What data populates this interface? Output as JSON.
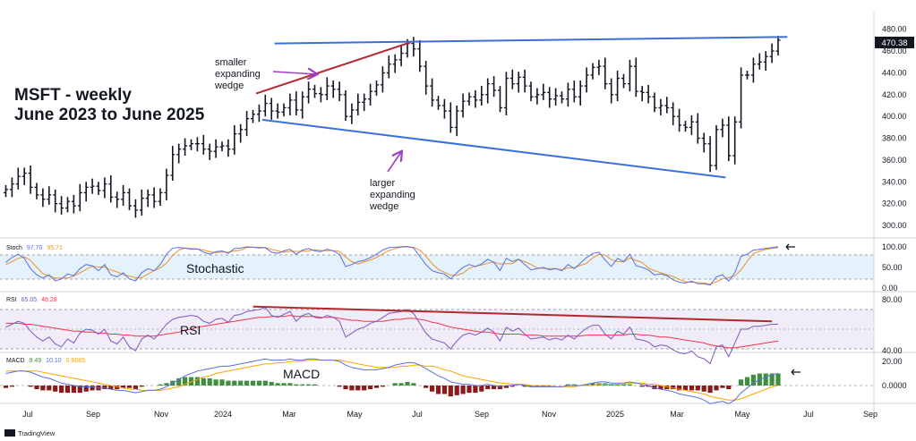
{
  "chart_data": {
    "type": "ohlc",
    "title": [
      "MSFT - weekly",
      "June 2023 to June 2025"
    ],
    "x_tick_labels": [
      "Jul",
      "Sep",
      "Nov",
      "2024",
      "Mar",
      "May",
      "Jul",
      "Sep",
      "Nov",
      "2025",
      "Mar",
      "May",
      "Jul",
      "Sep"
    ],
    "y_ticks": [
      "300.00",
      "320.00",
      "340.00",
      "360.00",
      "380.00",
      "400.00",
      "420.00",
      "440.00",
      "460.00",
      "480.00"
    ],
    "ylim": [
      300,
      488
    ],
    "last_price": "470.38",
    "weekly_close": [
      333,
      338,
      345,
      348,
      335,
      328,
      324,
      328,
      320,
      316,
      322,
      318,
      330,
      335,
      336,
      332,
      338,
      326,
      324,
      330,
      318,
      314,
      325,
      328,
      322,
      330,
      346,
      365,
      370,
      373,
      375,
      375,
      370,
      368,
      372,
      373,
      370,
      384,
      388,
      398,
      402,
      405,
      412,
      405,
      404,
      408,
      415,
      406,
      418,
      425,
      421,
      420,
      428,
      425,
      420,
      400,
      406,
      413,
      416,
      423,
      429,
      440,
      448,
      452,
      458,
      467,
      462,
      446,
      428,
      415,
      410,
      405,
      390,
      405,
      414,
      418,
      415,
      420,
      430,
      424,
      408,
      435,
      430,
      436,
      428,
      418,
      420,
      422,
      416,
      419,
      416,
      425,
      418,
      428,
      438,
      445,
      446,
      430,
      420,
      435,
      430,
      446,
      423,
      422,
      418,
      408,
      410,
      408,
      400,
      392,
      390,
      395,
      380,
      375,
      355,
      388,
      392,
      364,
      395,
      438,
      438,
      448,
      450,
      455,
      460,
      470
    ],
    "stochastic": {
      "label": "Stoch",
      "k": "97.70",
      "d": "95.71",
      "levels": [
        "100.00",
        "50.00",
        "0.00"
      ],
      "k_series": [
        60,
        72,
        80,
        70,
        45,
        30,
        22,
        30,
        15,
        20,
        32,
        28,
        45,
        55,
        52,
        40,
        55,
        30,
        25,
        35,
        20,
        15,
        35,
        45,
        40,
        55,
        80,
        95,
        96,
        95,
        92,
        93,
        85,
        80,
        86,
        88,
        82,
        94,
        95,
        98,
        97,
        95,
        96,
        85,
        82,
        88,
        92,
        80,
        90,
        94,
        88,
        86,
        92,
        88,
        80,
        50,
        55,
        62,
        65,
        72,
        80,
        90,
        96,
        97,
        98,
        99,
        95,
        75,
        55,
        40,
        35,
        32,
        20,
        35,
        48,
        55,
        50,
        56,
        68,
        60,
        40,
        70,
        62,
        68,
        55,
        42,
        45,
        48,
        42,
        45,
        40,
        55,
        45,
        58,
        72,
        82,
        85,
        66,
        50,
        70,
        62,
        80,
        52,
        48,
        42,
        30,
        32,
        28,
        18,
        12,
        10,
        15,
        8,
        8,
        5,
        25,
        30,
        15,
        35,
        75,
        80,
        90,
        92,
        94,
        96,
        98
      ],
      "d_series": [
        55,
        62,
        70,
        74,
        65,
        48,
        33,
        27,
        22,
        22,
        22,
        27,
        35,
        43,
        51,
        49,
        49,
        42,
        37,
        30,
        27,
        23,
        23,
        32,
        40,
        47,
        58,
        77,
        90,
        95,
        94,
        93,
        90,
        86,
        84,
        85,
        85,
        88,
        90,
        96,
        97,
        97,
        96,
        92,
        88,
        85,
        87,
        87,
        87,
        88,
        91,
        89,
        89,
        89,
        87,
        73,
        62,
        56,
        61,
        66,
        72,
        81,
        89,
        94,
        97,
        98,
        97,
        90,
        75,
        57,
        43,
        36,
        29,
        29,
        34,
        46,
        51,
        54,
        58,
        61,
        56,
        57,
        57,
        67,
        62,
        55,
        47,
        45,
        45,
        45,
        42,
        47,
        47,
        53,
        58,
        71,
        80,
        78,
        67,
        62,
        61,
        71,
        65,
        60,
        47,
        40,
        35,
        30,
        26,
        19,
        13,
        12,
        11,
        10,
        7,
        13,
        20,
        23,
        27,
        42,
        63,
        82,
        87,
        92,
        94,
        96
      ]
    },
    "rsi": {
      "label": "RSI",
      "value": "65.05",
      "ma": "48.28",
      "levels": [
        "80.00",
        "40.00"
      ],
      "series": [
        62,
        65,
        68,
        66,
        58,
        52,
        48,
        52,
        45,
        42,
        50,
        46,
        56,
        60,
        59,
        55,
        60,
        48,
        45,
        52,
        42,
        38,
        50,
        54,
        50,
        57,
        65,
        70,
        72,
        73,
        74,
        73,
        68,
        66,
        70,
        71,
        67,
        74,
        75,
        78,
        79,
        80,
        82,
        74,
        72,
        75,
        78,
        68,
        74,
        76,
        72,
        71,
        74,
        72,
        68,
        52,
        56,
        60,
        62,
        66,
        68,
        72,
        76,
        77,
        78,
        80,
        76,
        66,
        56,
        50,
        48,
        46,
        40,
        48,
        54,
        56,
        54,
        57,
        61,
        57,
        48,
        62,
        58,
        61,
        55,
        50,
        51,
        52,
        49,
        51,
        49,
        54,
        50,
        56,
        61,
        64,
        64,
        55,
        50,
        58,
        55,
        62,
        50,
        49,
        47,
        42,
        44,
        43,
        39,
        36,
        35,
        38,
        32,
        30,
        25,
        42,
        44,
        32,
        46,
        60,
        60,
        63,
        63,
        64,
        65,
        65
      ],
      "ma_series": [
        66,
        66,
        66,
        65,
        65,
        64,
        63,
        62,
        61,
        60,
        59,
        58,
        58,
        57,
        57,
        56,
        56,
        55,
        55,
        54,
        54,
        53,
        53,
        53,
        53,
        54,
        55,
        56,
        57,
        59,
        60,
        62,
        63,
        64,
        65,
        66,
        67,
        68,
        69,
        70,
        71,
        72,
        72,
        73,
        73,
        73,
        74,
        73,
        73,
        73,
        73,
        72,
        72,
        72,
        71,
        70,
        69,
        69,
        68,
        68,
        68,
        68,
        69,
        70,
        70,
        71,
        71,
        70,
        69,
        67,
        66,
        64,
        62,
        61,
        60,
        59,
        58,
        57,
        57,
        56,
        55,
        55,
        55,
        55,
        54,
        54,
        54,
        53,
        53,
        53,
        53,
        53,
        53,
        53,
        54,
        54,
        54,
        54,
        54,
        54,
        54,
        55,
        55,
        54,
        54,
        53,
        52,
        52,
        51,
        50,
        49,
        48,
        47,
        46,
        44,
        43,
        42,
        41,
        41,
        42,
        43,
        44,
        45,
        46,
        47,
        48
      ]
    },
    "macd": {
      "label": "MACD",
      "hist": "9.49",
      "macd": "10.10",
      "signal": "0.6085",
      "levels": [
        "20.00",
        "0.0000"
      ],
      "macd_series": [
        10,
        11,
        12,
        12,
        11,
        9,
        7,
        6,
        4,
        2,
        1,
        0,
        -1,
        -1,
        -1,
        -2,
        -2,
        -3,
        -4,
        -4,
        -5,
        -6,
        -5,
        -4,
        -4,
        -3,
        -1,
        2,
        5,
        8,
        10,
        12,
        13,
        14,
        15,
        16,
        16,
        17,
        18,
        19,
        20,
        21,
        22,
        21,
        21,
        21,
        22,
        21,
        21,
        22,
        22,
        21,
        21,
        21,
        20,
        17,
        15,
        14,
        13,
        13,
        13,
        14,
        15,
        17,
        18,
        19,
        19,
        17,
        14,
        11,
        8,
        6,
        3,
        2,
        1,
        1,
        0,
        0,
        1,
        0,
        -1,
        0,
        0,
        1,
        0,
        -1,
        -1,
        -1,
        -1,
        -1,
        -1,
        0,
        0,
        0,
        1,
        2,
        3,
        3,
        2,
        2,
        2,
        3,
        2,
        1,
        0,
        -2,
        -3,
        -4,
        -5,
        -7,
        -8,
        -9,
        -10,
        -12,
        -15,
        -14,
        -13,
        -15,
        -12,
        -6,
        -2,
        2,
        5,
        7,
        9,
        10
      ],
      "signal_series": [
        12,
        12,
        12,
        12,
        12,
        12,
        11,
        10,
        9,
        8,
        7,
        6,
        5,
        4,
        3,
        2,
        1,
        0,
        -1,
        -2,
        -3,
        -3,
        -4,
        -4,
        -4,
        -4,
        -3,
        -2,
        -1,
        1,
        3,
        5,
        7,
        8,
        10,
        11,
        12,
        13,
        14,
        15,
        16,
        17,
        18,
        18,
        19,
        19,
        20,
        20,
        20,
        21,
        21,
        21,
        21,
        21,
        21,
        20,
        19,
        18,
        17,
        16,
        15,
        15,
        15,
        15,
        16,
        16,
        17,
        17,
        16,
        16,
        15,
        13,
        12,
        10,
        8,
        7,
        6,
        5,
        4,
        3,
        2,
        2,
        1,
        1,
        1,
        0,
        0,
        0,
        0,
        -1,
        -1,
        -1,
        -1,
        0,
        0,
        0,
        1,
        1,
        1,
        1,
        1,
        2,
        2,
        2,
        1,
        1,
        0,
        -1,
        -2,
        -3,
        -4,
        -5,
        -6,
        -7,
        -9,
        -10,
        -11,
        -12,
        -12,
        -11,
        -9,
        -7,
        -5,
        -3,
        -1,
        0
      ]
    },
    "trendlines": [
      {
        "name": "smaller-wedge-top",
        "color": "#b2282e",
        "from": {
          "week": 40.5,
          "price": 421
        },
        "to": {
          "week": 65.5,
          "price": 468
        }
      },
      {
        "name": "larger-wedge-bottom",
        "color": "#3c6fd8",
        "from": {
          "week": 41.5,
          "price": 397
        },
        "to": {
          "week": 116.5,
          "price": 344
        }
      },
      {
        "name": "top-line",
        "color": "#3c6fd8",
        "from": {
          "week": 43.5,
          "price": 467
        },
        "to": {
          "week": 126.5,
          "price": 473
        }
      },
      {
        "name": "rsi-divergence",
        "color": "#b2282e",
        "pane": "rsi",
        "from": {
          "week": 40,
          "value": 83
        },
        "to": {
          "week": 124,
          "value": 68
        }
      }
    ],
    "annotations": {
      "smaller_wedge": [
        "smaller",
        "expanding",
        "wedge"
      ],
      "larger_wedge": [
        "larger",
        "expanding",
        "wedge"
      ],
      "stochastic": "Stochastic",
      "rsi": "RSI",
      "macd": "MACD"
    },
    "colors": {
      "bars": "#131722",
      "stoch_k": "#5b6ee1",
      "stoch_d": "#f0902b",
      "rsi_line": "#7e57c2",
      "rsi_ma": "#f23645",
      "macd_line": "#5b6ee1",
      "signal_line": "#f7a600",
      "hist_pos": "#3f8f3f",
      "hist_neg": "#8b1a1a"
    }
  },
  "footer": {
    "logo_text": "TradingView"
  }
}
